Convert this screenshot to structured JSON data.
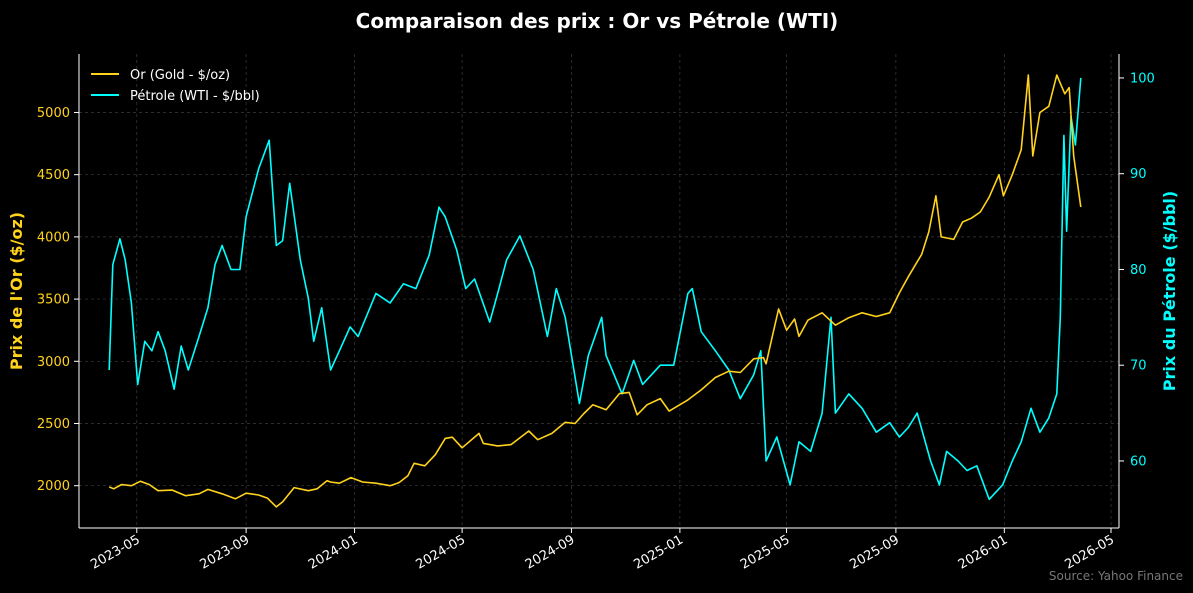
{
  "chart_data": {
    "type": "line",
    "title": "Comparaison des prix : Or vs Pétrole (WTI)",
    "source": "Source: Yahoo Finance",
    "x_ticks": [
      "2023-05",
      "2023-09",
      "2024-01",
      "2024-05",
      "2024-09",
      "2025-01",
      "2025-05",
      "2025-09",
      "2026-01",
      "2026-05"
    ],
    "xlim": [
      "2023-02-25",
      "2026-05-10"
    ],
    "y_left": {
      "label": "Prix de l'Or ($/oz)",
      "ticks": [
        2000,
        2500,
        3000,
        3500,
        4000,
        4500,
        5000
      ],
      "lim": [
        1660,
        5470
      ],
      "color": "#ffd21c"
    },
    "y_right": {
      "label": "Prix du Pétrole ($/bbl)",
      "ticks": [
        60,
        70,
        80,
        90,
        100
      ],
      "lim": [
        53,
        102.5
      ],
      "color": "#00ffff"
    },
    "grid": true,
    "legend_position": "top-left",
    "series": [
      {
        "name": "Or (Gold - $/oz)",
        "axis": "left",
        "color": "#ffd21c",
        "points": [
          [
            "2023-03-31",
            1990
          ],
          [
            "2023-04-05",
            1975
          ],
          [
            "2023-04-14",
            2010
          ],
          [
            "2023-04-25",
            2000
          ],
          [
            "2023-05-05",
            2035
          ],
          [
            "2023-05-15",
            2010
          ],
          [
            "2023-05-25",
            1960
          ],
          [
            "2023-06-10",
            1965
          ],
          [
            "2023-06-25",
            1920
          ],
          [
            "2023-07-10",
            1935
          ],
          [
            "2023-07-20",
            1970
          ],
          [
            "2023-08-05",
            1935
          ],
          [
            "2023-08-20",
            1895
          ],
          [
            "2023-09-01",
            1940
          ],
          [
            "2023-09-15",
            1925
          ],
          [
            "2023-09-25",
            1900
          ],
          [
            "2023-10-05",
            1830
          ],
          [
            "2023-10-12",
            1870
          ],
          [
            "2023-10-25",
            1985
          ],
          [
            "2023-11-10",
            1960
          ],
          [
            "2023-11-20",
            1975
          ],
          [
            "2023-12-01",
            2040
          ],
          [
            "2023-12-05",
            2030
          ],
          [
            "2023-12-15",
            2020
          ],
          [
            "2023-12-28",
            2065
          ],
          [
            "2024-01-10",
            2030
          ],
          [
            "2024-01-25",
            2020
          ],
          [
            "2024-02-10",
            2000
          ],
          [
            "2024-02-20",
            2025
          ],
          [
            "2024-03-01",
            2080
          ],
          [
            "2024-03-08",
            2180
          ],
          [
            "2024-03-20",
            2160
          ],
          [
            "2024-04-01",
            2250
          ],
          [
            "2024-04-12",
            2380
          ],
          [
            "2024-04-20",
            2390
          ],
          [
            "2024-05-01",
            2305
          ],
          [
            "2024-05-20",
            2420
          ],
          [
            "2024-05-25",
            2340
          ],
          [
            "2024-06-10",
            2320
          ],
          [
            "2024-06-25",
            2330
          ],
          [
            "2024-07-15",
            2440
          ],
          [
            "2024-07-25",
            2370
          ],
          [
            "2024-08-10",
            2420
          ],
          [
            "2024-08-25",
            2510
          ],
          [
            "2024-09-05",
            2500
          ],
          [
            "2024-09-15",
            2580
          ],
          [
            "2024-09-25",
            2650
          ],
          [
            "2024-10-10",
            2610
          ],
          [
            "2024-10-25",
            2740
          ],
          [
            "2024-11-05",
            2750
          ],
          [
            "2024-11-14",
            2570
          ],
          [
            "2024-11-25",
            2650
          ],
          [
            "2024-12-10",
            2700
          ],
          [
            "2024-12-20",
            2600
          ],
          [
            "2025-01-10",
            2690
          ],
          [
            "2025-01-25",
            2770
          ],
          [
            "2025-02-10",
            2870
          ],
          [
            "2025-02-25",
            2920
          ],
          [
            "2025-03-10",
            2910
          ],
          [
            "2025-03-25",
            3020
          ],
          [
            "2025-04-05",
            3030
          ],
          [
            "2025-04-08",
            2980
          ],
          [
            "2025-04-15",
            3200
          ],
          [
            "2025-04-22",
            3420
          ],
          [
            "2025-05-01",
            3250
          ],
          [
            "2025-05-10",
            3340
          ],
          [
            "2025-05-15",
            3200
          ],
          [
            "2025-05-25",
            3330
          ],
          [
            "2025-06-10",
            3390
          ],
          [
            "2025-06-25",
            3290
          ],
          [
            "2025-07-10",
            3350
          ],
          [
            "2025-07-25",
            3390
          ],
          [
            "2025-08-10",
            3360
          ],
          [
            "2025-08-25",
            3390
          ],
          [
            "2025-09-05",
            3550
          ],
          [
            "2025-09-15",
            3680
          ],
          [
            "2025-09-30",
            3860
          ],
          [
            "2025-10-08",
            4040
          ],
          [
            "2025-10-16",
            4330
          ],
          [
            "2025-10-22",
            4000
          ],
          [
            "2025-11-05",
            3980
          ],
          [
            "2025-11-15",
            4120
          ],
          [
            "2025-11-25",
            4150
          ],
          [
            "2025-12-05",
            4200
          ],
          [
            "2025-12-15",
            4320
          ],
          [
            "2025-12-26",
            4500
          ],
          [
            "2025-12-31",
            4330
          ],
          [
            "2026-01-10",
            4500
          ],
          [
            "2026-01-20",
            4700
          ],
          [
            "2026-01-28",
            5300
          ],
          [
            "2026-02-02",
            4650
          ],
          [
            "2026-02-10",
            5000
          ],
          [
            "2026-02-20",
            5050
          ],
          [
            "2026-03-01",
            5300
          ],
          [
            "2026-03-10",
            5150
          ],
          [
            "2026-03-15",
            5200
          ],
          [
            "2026-03-20",
            4650
          ],
          [
            "2026-03-28",
            4240
          ]
        ]
      },
      {
        "name": "Pétrole (WTI - $/bbl)",
        "axis": "right",
        "color": "#00ffff",
        "points": [
          [
            "2023-03-31",
            69.5
          ],
          [
            "2023-04-04",
            80.5
          ],
          [
            "2023-04-12",
            83.2
          ],
          [
            "2023-04-18",
            81
          ],
          [
            "2023-04-25",
            76.5
          ],
          [
            "2023-05-02",
            68
          ],
          [
            "2023-05-10",
            72.5
          ],
          [
            "2023-05-18",
            71.5
          ],
          [
            "2023-05-25",
            73.5
          ],
          [
            "2023-06-02",
            71.5
          ],
          [
            "2023-06-12",
            67.5
          ],
          [
            "2023-06-20",
            72
          ],
          [
            "2023-06-28",
            69.5
          ],
          [
            "2023-07-10",
            73
          ],
          [
            "2023-07-20",
            76
          ],
          [
            "2023-07-28",
            80.5
          ],
          [
            "2023-08-05",
            82.5
          ],
          [
            "2023-08-15",
            80
          ],
          [
            "2023-08-25",
            80
          ],
          [
            "2023-09-01",
            85.5
          ],
          [
            "2023-09-15",
            90.5
          ],
          [
            "2023-09-27",
            93.5
          ],
          [
            "2023-10-05",
            82.5
          ],
          [
            "2023-10-12",
            83
          ],
          [
            "2023-10-20",
            89
          ],
          [
            "2023-11-01",
            81
          ],
          [
            "2023-11-10",
            77
          ],
          [
            "2023-11-16",
            72.5
          ],
          [
            "2023-11-25",
            76
          ],
          [
            "2023-12-05",
            69.5
          ],
          [
            "2023-12-15",
            71.5
          ],
          [
            "2023-12-27",
            74
          ],
          [
            "2024-01-05",
            73
          ],
          [
            "2024-01-25",
            77.5
          ],
          [
            "2024-02-10",
            76.5
          ],
          [
            "2024-02-25",
            78.5
          ],
          [
            "2024-03-10",
            78
          ],
          [
            "2024-03-25",
            81.5
          ],
          [
            "2024-04-05",
            86.5
          ],
          [
            "2024-04-12",
            85.5
          ],
          [
            "2024-04-25",
            82
          ],
          [
            "2024-05-05",
            78
          ],
          [
            "2024-05-15",
            79
          ],
          [
            "2024-06-01",
            74.5
          ],
          [
            "2024-06-10",
            77.5
          ],
          [
            "2024-06-20",
            81
          ],
          [
            "2024-07-05",
            83.5
          ],
          [
            "2024-07-20",
            80
          ],
          [
            "2024-08-05",
            73
          ],
          [
            "2024-08-15",
            78
          ],
          [
            "2024-08-25",
            75
          ],
          [
            "2024-09-10",
            66
          ],
          [
            "2024-09-20",
            71
          ],
          [
            "2024-10-05",
            75
          ],
          [
            "2024-10-10",
            71
          ],
          [
            "2024-10-28",
            67
          ],
          [
            "2024-11-10",
            70.5
          ],
          [
            "2024-11-20",
            68
          ],
          [
            "2024-12-10",
            70
          ],
          [
            "2024-12-25",
            70
          ],
          [
            "2025-01-10",
            77.5
          ],
          [
            "2025-01-15",
            78
          ],
          [
            "2025-01-25",
            73.5
          ],
          [
            "2025-02-10",
            71.5
          ],
          [
            "2025-02-25",
            69.5
          ],
          [
            "2025-03-10",
            66.5
          ],
          [
            "2025-03-25",
            69
          ],
          [
            "2025-04-02",
            71.5
          ],
          [
            "2025-04-08",
            60
          ],
          [
            "2025-04-20",
            62.5
          ],
          [
            "2025-05-05",
            57.5
          ],
          [
            "2025-05-15",
            62
          ],
          [
            "2025-05-28",
            61
          ],
          [
            "2025-06-10",
            65
          ],
          [
            "2025-06-20",
            75
          ],
          [
            "2025-06-25",
            65
          ],
          [
            "2025-07-10",
            67
          ],
          [
            "2025-07-25",
            65.5
          ],
          [
            "2025-08-10",
            63
          ],
          [
            "2025-08-25",
            64
          ],
          [
            "2025-09-05",
            62.5
          ],
          [
            "2025-09-15",
            63.5
          ],
          [
            "2025-09-25",
            65
          ],
          [
            "2025-10-10",
            60
          ],
          [
            "2025-10-20",
            57.5
          ],
          [
            "2025-10-28",
            61
          ],
          [
            "2025-11-10",
            60
          ],
          [
            "2025-11-20",
            59
          ],
          [
            "2025-12-01",
            59.5
          ],
          [
            "2025-12-15",
            56
          ],
          [
            "2025-12-30",
            57.5
          ],
          [
            "2026-01-10",
            60
          ],
          [
            "2026-01-20",
            62
          ],
          [
            "2026-01-31",
            65.5
          ],
          [
            "2026-02-10",
            63
          ],
          [
            "2026-02-20",
            64.5
          ],
          [
            "2026-03-01",
            67
          ],
          [
            "2026-03-05",
            75
          ],
          [
            "2026-03-09",
            94
          ],
          [
            "2026-03-12",
            84
          ],
          [
            "2026-03-17",
            96
          ],
          [
            "2026-03-22",
            93
          ],
          [
            "2026-03-28",
            100
          ]
        ]
      }
    ]
  }
}
